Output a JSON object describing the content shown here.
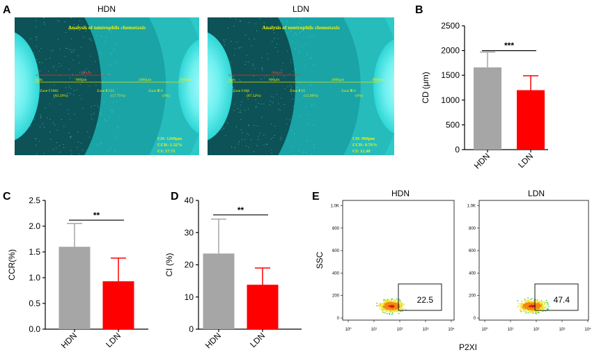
{
  "panels": {
    "A": "A",
    "B": "B",
    "C": "C",
    "D": "D",
    "E": "E"
  },
  "micrographs": [
    {
      "label": "HDN",
      "title": "Analysis of neutrophils chemotaxis",
      "marks": [
        "0μm",
        "800μm",
        "2000μm",
        "2800μm"
      ],
      "red_mark": "1260μm",
      "zones": [
        {
          "name": "Zone Ⅰ:1882",
          "pct": "(82.29%)"
        },
        {
          "name": "Zone Ⅱ:355",
          "pct": "(17.71%)"
        },
        {
          "name": "Zone Ⅲ:0",
          "pct": "(0%)"
        }
      ],
      "stats": [
        "CD: 1260μm",
        "CCR: 1.32%",
        "CI: 17.71"
      ]
    },
    {
      "label": "LDN",
      "title": "Analysis of neutrophils chemotaxis",
      "marks": [
        "0μm",
        "800μm",
        "2000μm",
        "2800μm"
      ],
      "red_mark": "960μm",
      "zones": [
        {
          "name": "Zone Ⅰ:660",
          "pct": "(87.52%)"
        },
        {
          "name": "Zone Ⅱ:95",
          "pct": "(12.48%)"
        },
        {
          "name": "Zone Ⅲ:0",
          "pct": "(0%)"
        }
      ],
      "stats": [
        "CD: 960μm",
        "CCR: 0.76%",
        "CI: 12.48"
      ]
    }
  ],
  "chart_data": [
    {
      "panel": "B",
      "type": "bar",
      "categories": [
        "HDN",
        "LDN"
      ],
      "values": [
        1660,
        1200
      ],
      "errors": [
        310,
        290
      ],
      "colors": [
        "#a6a6a6",
        "#ff0000"
      ],
      "ylabel": "CD (μm)",
      "ylim": [
        0,
        2500
      ],
      "yticks": [
        0,
        500,
        1000,
        1500,
        2000,
        2500
      ],
      "significance": "***"
    },
    {
      "panel": "C",
      "type": "bar",
      "categories": [
        "HDN",
        "LDN"
      ],
      "values": [
        1.6,
        0.93
      ],
      "errors": [
        0.45,
        0.45
      ],
      "colors": [
        "#a6a6a6",
        "#ff0000"
      ],
      "ylabel": "CCR(%)",
      "ylim": [
        0,
        2.5
      ],
      "yticks": [
        "0.0",
        "0.5",
        "1.0",
        "1.5",
        "2.0",
        "2.5"
      ],
      "significance": "**"
    },
    {
      "panel": "D",
      "type": "bar",
      "categories": [
        "HDN",
        "LDN"
      ],
      "values": [
        23.5,
        13.8
      ],
      "errors": [
        10.7,
        5.2
      ],
      "colors": [
        "#a6a6a6",
        "#ff0000"
      ],
      "ylabel": "CI (%)",
      "ylim": [
        0,
        40
      ],
      "yticks": [
        0,
        10,
        20,
        30,
        40
      ],
      "significance": "**"
    },
    {
      "panel": "E",
      "type": "scatter",
      "plots": [
        {
          "label": "HDN",
          "gate_value": "22.5"
        },
        {
          "label": "LDN",
          "gate_value": "47.4"
        }
      ],
      "xlabel": "P2XI",
      "ylabel": "SSC",
      "xticks": [
        "10⁰",
        "10¹",
        "10²",
        "10³",
        "10⁴"
      ],
      "yticks": [
        "0",
        "200",
        "400",
        "600",
        "800",
        "1.0K"
      ]
    }
  ]
}
